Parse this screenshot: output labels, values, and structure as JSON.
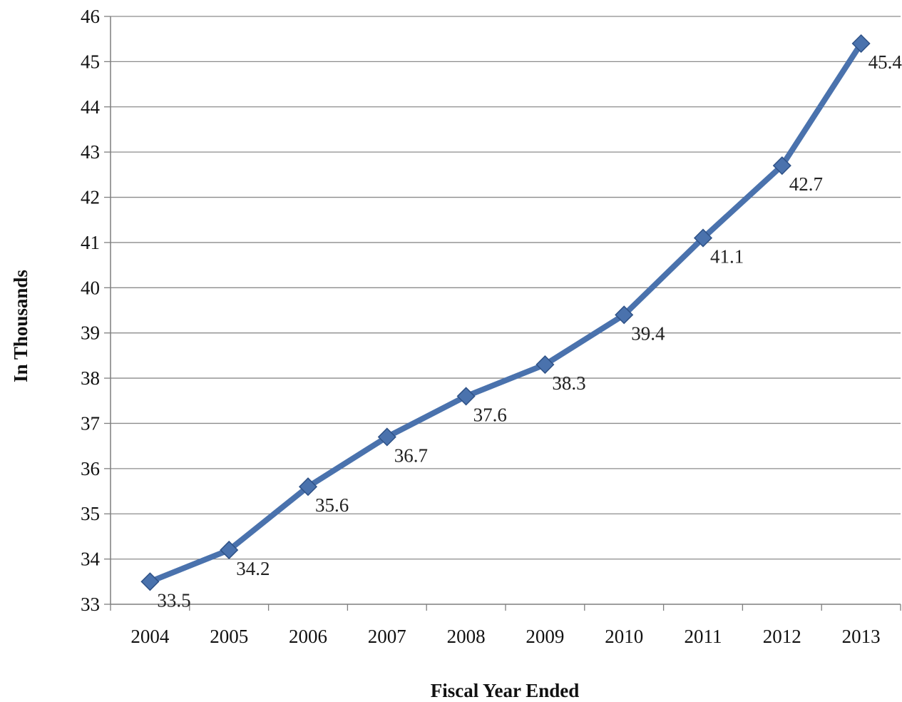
{
  "chart_data": {
    "type": "line",
    "title": "",
    "xlabel": "Fiscal Year Ended",
    "ylabel": "In Thousands",
    "categories": [
      "2004",
      "2005",
      "2006",
      "2007",
      "2008",
      "2009",
      "2010",
      "2011",
      "2012",
      "2013"
    ],
    "series": [
      {
        "values": [
          33.5,
          34.2,
          35.6,
          36.7,
          37.6,
          38.3,
          39.4,
          41.1,
          42.7,
          45.4
        ],
        "labels": [
          "33.5",
          "34.2",
          "35.6",
          "36.7",
          "37.6",
          "38.3",
          "39.4",
          "41.1",
          "42.7",
          "45.4"
        ],
        "color": "#4a72ad",
        "marker": "diamond"
      }
    ],
    "ylim": [
      33,
      46
    ],
    "ytick_step": 1,
    "yticks": [
      "33",
      "34",
      "35",
      "36",
      "37",
      "38",
      "39",
      "40",
      "41",
      "42",
      "43",
      "44",
      "45",
      "46"
    ],
    "grid": true,
    "legend": "none"
  },
  "colors": {
    "gridline": "#8c8c8c",
    "axis": "#7f7f7f",
    "line": "#4a72ad",
    "marker_fill": "#4a72ad",
    "marker_edge": "#2f5287"
  }
}
